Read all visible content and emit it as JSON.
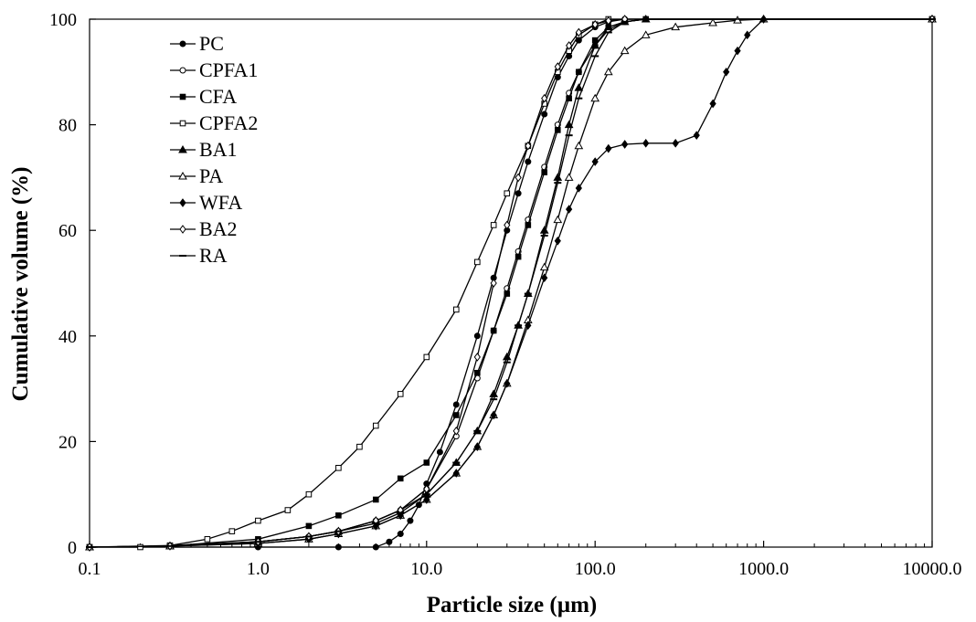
{
  "chart_data": {
    "type": "line",
    "title": "",
    "xlabel": "Particle size (µm)",
    "ylabel": "Cumulative volume (%)",
    "x_scale": "log",
    "xlim": [
      0.1,
      10000
    ],
    "ylim": [
      0,
      100
    ],
    "x_ticks": [
      "0.1",
      "1.0",
      "10.0",
      "100.0",
      "1000.0",
      "10000.0"
    ],
    "y_ticks": [
      "0",
      "20",
      "40",
      "60",
      "80",
      "100"
    ],
    "grid": false,
    "legend_position": "top-left",
    "series": [
      {
        "name": "PC",
        "marker": "filled-circle",
        "x": [
          0.1,
          1,
          3,
          5,
          6,
          7,
          8,
          9,
          10,
          12,
          15,
          20,
          25,
          30,
          35,
          40,
          50,
          60,
          70,
          80,
          100,
          120,
          150,
          200,
          10000
        ],
        "y": [
          0,
          0,
          0,
          0,
          1,
          2.5,
          5,
          8,
          12,
          18,
          27,
          40,
          51,
          60,
          67,
          73,
          82,
          89,
          93,
          96,
          98.5,
          99.5,
          100,
          100,
          100
        ]
      },
      {
        "name": "CPFA1",
        "marker": "open-circle",
        "x": [
          0.1,
          0.3,
          1,
          2,
          3,
          5,
          7,
          10,
          15,
          20,
          25,
          30,
          35,
          40,
          50,
          60,
          70,
          80,
          100,
          120,
          150,
          200,
          10000
        ],
        "y": [
          0,
          0.3,
          1,
          2,
          3,
          5,
          7,
          11,
          21,
          32,
          41,
          49,
          56,
          62,
          72,
          80,
          86,
          90,
          95,
          98,
          99.5,
          100,
          100
        ]
      },
      {
        "name": "CFA",
        "marker": "filled-square",
        "x": [
          0.1,
          0.3,
          1,
          2,
          3,
          5,
          7,
          10,
          15,
          20,
          25,
          30,
          35,
          40,
          50,
          60,
          70,
          80,
          100,
          120,
          150,
          200,
          10000
        ],
        "y": [
          0,
          0.2,
          1.5,
          4,
          6,
          9,
          13,
          16,
          25,
          33,
          41,
          48,
          55,
          61,
          71,
          79,
          85,
          90,
          96,
          98.5,
          99.5,
          100,
          100
        ]
      },
      {
        "name": "CPFA2",
        "marker": "open-square",
        "x": [
          0.1,
          0.2,
          0.3,
          0.5,
          0.7,
          1,
          1.5,
          2,
          3,
          4,
          5,
          7,
          10,
          15,
          20,
          25,
          30,
          40,
          50,
          60,
          70,
          80,
          100,
          120,
          10000
        ],
        "y": [
          0,
          0,
          0.3,
          1.5,
          3,
          5,
          7,
          10,
          15,
          19,
          23,
          29,
          36,
          45,
          54,
          61,
          67,
          76,
          84,
          90,
          94,
          97,
          99,
          100,
          100
        ]
      },
      {
        "name": "BA1",
        "marker": "filled-triangle",
        "x": [
          0.1,
          0.3,
          1,
          2,
          3,
          5,
          7,
          10,
          15,
          20,
          25,
          30,
          35,
          40,
          50,
          60,
          70,
          80,
          100,
          120,
          150,
          200,
          10000
        ],
        "y": [
          0,
          0.2,
          1,
          2,
          3,
          5,
          7,
          10,
          16,
          22,
          29,
          36,
          42,
          48,
          60,
          70,
          80,
          87,
          95,
          98.5,
          99.5,
          100,
          100
        ]
      },
      {
        "name": "PA",
        "marker": "open-triangle",
        "x": [
          0.1,
          0.3,
          1,
          2,
          3,
          5,
          7,
          10,
          15,
          20,
          25,
          30,
          40,
          50,
          60,
          70,
          80,
          100,
          120,
          150,
          200,
          300,
          500,
          700,
          1000,
          10000
        ],
        "y": [
          0,
          0.2,
          0.7,
          1.5,
          2.5,
          4,
          6,
          9,
          14,
          19,
          25,
          31,
          43,
          53,
          62,
          70,
          76,
          85,
          90,
          94,
          97,
          98.5,
          99.3,
          99.8,
          100,
          100
        ]
      },
      {
        "name": "WFA",
        "marker": "filled-diamond",
        "x": [
          0.1,
          0.3,
          1,
          2,
          3,
          5,
          7,
          10,
          15,
          20,
          25,
          30,
          40,
          50,
          60,
          70,
          80,
          100,
          120,
          150,
          200,
          300,
          400,
          500,
          600,
          700,
          800,
          1000,
          10000
        ],
        "y": [
          0,
          0.2,
          0.7,
          1.5,
          2.5,
          4,
          6,
          9,
          14,
          19,
          25,
          31,
          42,
          51,
          58,
          64,
          68,
          73,
          75.5,
          76.3,
          76.5,
          76.5,
          78,
          84,
          90,
          94,
          97,
          100,
          100
        ]
      },
      {
        "name": "BA2",
        "marker": "open-diamond",
        "x": [
          0.1,
          0.3,
          1,
          2,
          3,
          5,
          7,
          10,
          15,
          20,
          25,
          30,
          35,
          40,
          50,
          60,
          70,
          80,
          100,
          120,
          150,
          10000
        ],
        "y": [
          0,
          0.2,
          1,
          2,
          3,
          5,
          7,
          11,
          22,
          36,
          50,
          61,
          70,
          76,
          85,
          91,
          95,
          97.5,
          99,
          99.7,
          100,
          100
        ]
      },
      {
        "name": "RA",
        "marker": "dash",
        "x": [
          0.1,
          0.3,
          1,
          2,
          3,
          5,
          7,
          10,
          15,
          20,
          25,
          30,
          35,
          40,
          50,
          60,
          70,
          80,
          100,
          120,
          150,
          200,
          10000
        ],
        "y": [
          0,
          0.2,
          1,
          2,
          3,
          4.5,
          6.5,
          10,
          16,
          22,
          28,
          35,
          42,
          48,
          59,
          69,
          78,
          85,
          93,
          97.5,
          99.5,
          100,
          100
        ]
      }
    ]
  }
}
